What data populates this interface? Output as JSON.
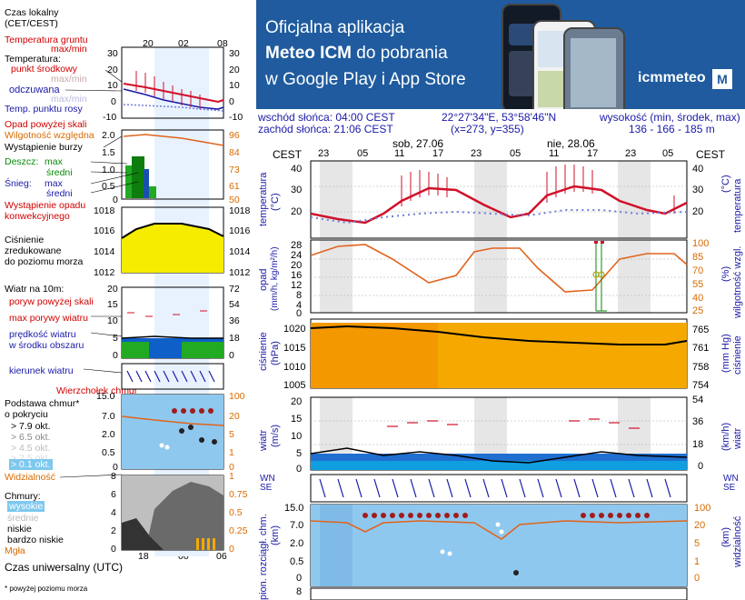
{
  "legend": {
    "time_local": "Czas lokalny",
    "time_local_tz": "(CET/CEST)",
    "top_hours": [
      "20",
      "02",
      "08"
    ],
    "soil_temp": "Temperatura gruntu",
    "max_min": "max/min",
    "temperature": "Temperatura:",
    "mid_point": "punkt środkowy",
    "max_min2": "max/min",
    "feels_like": "odczuwana",
    "max_min3": "max/min",
    "dew_point": "Temp. punktu rosy",
    "temp_left_ticks": [
      "30",
      "20",
      "10",
      "0",
      "-10"
    ],
    "temp_right_ticks": [
      "30",
      "20",
      "10",
      "0",
      "-10"
    ],
    "precip_over": "Opad powyżej skali",
    "rel_humidity": "Wilgotność względna",
    "thunder": "Wystąpienie burzy",
    "rain": "Deszcz:",
    "max": "max",
    "avg": "średni",
    "snow": "Śnieg:",
    "max2": "max",
    "avg2": "średni",
    "convective": "Wystąpienie opadu",
    "convective2": "konwekcyjnego",
    "precip_left_ticks": [
      "2.0",
      "1.5",
      "1.0",
      "0.5",
      "0"
    ],
    "precip_right_ticks": [
      "96",
      "84",
      "73",
      "61",
      "50"
    ],
    "pressure": "Ciśnienie",
    "pressure2": "zredukowane",
    "pressure3": "do poziomu morza",
    "press_left_ticks": [
      "1018",
      "1016",
      "1014",
      "1012"
    ],
    "press_right_ticks": [
      "1018",
      "1016",
      "1014",
      "1012"
    ],
    "wind_at": "Wiatr na 10m:",
    "gust_over": "poryw powyżej skali",
    "max_gust": "max porywy wiatru",
    "wind_speed": "prędkość wiatru",
    "wind_speed2": "w środku obszaru",
    "wind_left_ticks": [
      "20",
      "15",
      "10",
      "5",
      "0"
    ],
    "wind_right_ticks": [
      "72",
      "54",
      "36",
      "18",
      "0"
    ],
    "wind_dir": "kierunek wiatru",
    "cloud_top": "Wierzchołek chmur",
    "cloud_base": "Podstawa chmur*",
    "cloud_base2": "o pokryciu",
    "okt": [
      "> 7.9 okt.",
      "> 6.5 okt.",
      "> 4.5 okt.",
      "> 2.5 okt.",
      "> 0.1 okt."
    ],
    "visibility": "Widzialność",
    "cloud_left_ticks": [
      "15.0",
      "7.0",
      "2.0",
      "0.5",
      "0"
    ],
    "cloud_right_ticks": [
      "100",
      "20",
      "5",
      "1",
      "0"
    ],
    "clouds": "Chmury:",
    "high": "wysokie",
    "mid": "średnie",
    "low": "niskie",
    "very_low": "bardzo niskie",
    "fog": "Mgła",
    "cl_left_ticks": [
      "8",
      "6",
      "4",
      "2",
      "0"
    ],
    "cl_right_ticks": [
      "1",
      "0.75",
      "0.5",
      "0.25",
      "0"
    ],
    "utc_hours": [
      "18",
      "00",
      "06"
    ],
    "utc": "Czas uniwersalny (UTC)",
    "footnote": "* powyżej poziomu morza"
  },
  "banner": {
    "line1": "Oficjalna aplikacja",
    "line2_bold": "Meteo ICM",
    "line2_rest": " do pobrania",
    "line3": "w Google Play i App Store",
    "logo": "icmmeteo",
    "logo_box": "M"
  },
  "header": {
    "sunrise": "wschód słońca: 04:00 CEST",
    "sunset": "zachód słońca: 21:06 CEST",
    "coords": "22°27'34\"E, 53°58'46\"N",
    "grid": "(x=273,  y=355)",
    "height_label": "wysokość (min, środek, max)",
    "height_values": "136 - 166 - 185 m"
  },
  "main": {
    "tz": "CEST",
    "day1": "sob, 27.06",
    "day2": "nie, 28.06",
    "hours": [
      "23",
      "05",
      "11",
      "17",
      "23",
      "05",
      "11",
      "17",
      "23",
      "05"
    ],
    "temp_label": "temperatura",
    "temp_unit": "(°C)",
    "temp_ticks": [
      "40",
      "30",
      "20"
    ],
    "precip_label": "opad",
    "precip_unit": "(mm/h, kg/m²/h)",
    "precip_ticks": [
      "28",
      "24",
      "20",
      "16",
      "12",
      "8",
      "4",
      "0"
    ],
    "hum_label": "wilgotność wzgl.",
    "hum_unit": "(%)",
    "hum_ticks": [
      "100",
      "85",
      "70",
      "55",
      "40",
      "25"
    ],
    "press_label": "ciśnienie",
    "press_unit": "(hPa)",
    "press_ticks": [
      "1020",
      "1015",
      "1010",
      "1005"
    ],
    "press_mm_label": "ciśnienie",
    "press_mm_unit": "(mm Hg)",
    "press_mm_ticks": [
      "765",
      "761",
      "758",
      "754"
    ],
    "wind_label": "wiatr",
    "wind_unit": "(m/s)",
    "wind_ticks": [
      "20",
      "15",
      "10",
      "5",
      "0"
    ],
    "wind_kmh_unit": "(km/h)",
    "wind_kmh_ticks": [
      "54",
      "36",
      "18",
      "0"
    ],
    "compass": [
      "W",
      "N",
      "S",
      "E"
    ],
    "cloud_label": "pion. rozciągł. chm.",
    "cloud_unit": "(km)",
    "cloud_ticks": [
      "15.0",
      "7.0",
      "2.0",
      "0.5",
      "0"
    ],
    "vis_label": "widzialność",
    "vis_unit": "(km)",
    "vis_ticks": [
      "100",
      "20",
      "5",
      "1",
      "0"
    ],
    "bottom_tick": "8"
  },
  "colors": {
    "banner_bg": "#1f5b9e",
    "temp_line": "#d0102a",
    "humidity_line": "#e0641e",
    "pressure_fill": "#f5a900",
    "wind_fill": "#1e6fd0",
    "sky": "#8fc8ee"
  }
}
